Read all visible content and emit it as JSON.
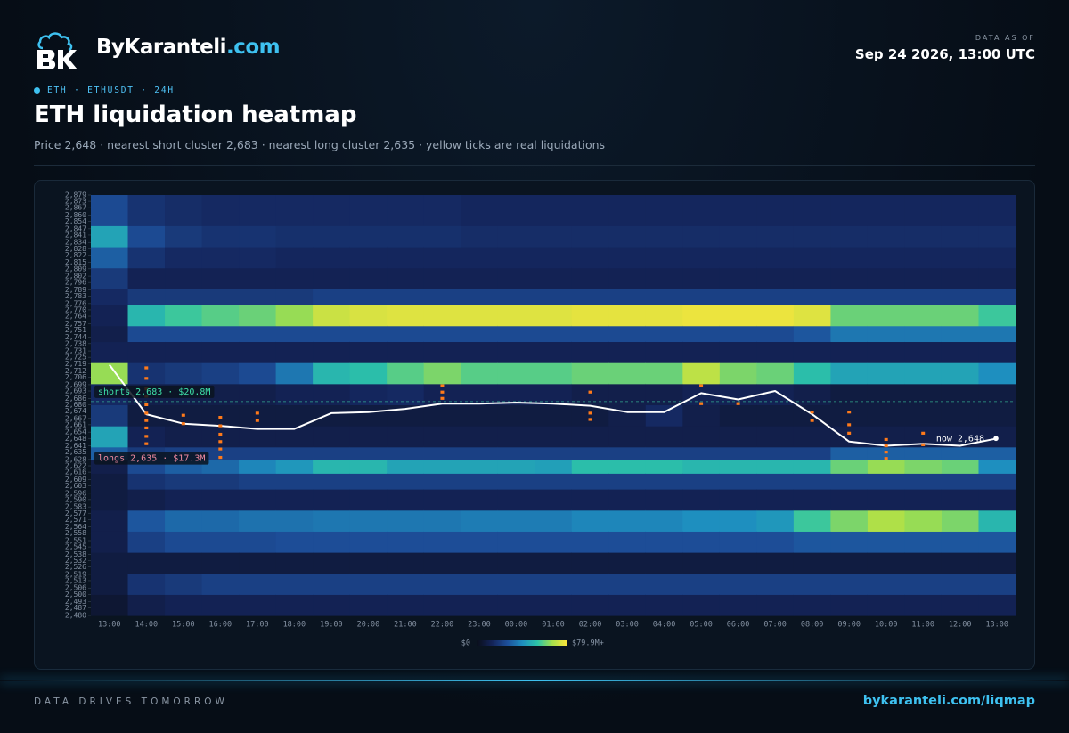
{
  "header": {
    "brand_name": "ByKaranteli",
    "brand_domain": ".com",
    "data_as_of_label": "DATA AS OF",
    "data_as_of": "Sep 24 2026, 13:00 UTC"
  },
  "tag": "ETH · ETHUSDT · 24H",
  "footer": {
    "tagline": "DATA DRIVES TOMORROW",
    "url": "bykaranteli.com/liqmap"
  },
  "chart_data": {
    "type": "heatmap",
    "title": "ETH liquidation heatmap",
    "subtitle": "Price 2,648 · nearest short cluster 2,683 · nearest long cluster 2,635 · yellow ticks are real liquidations",
    "categories": [
      "13:00",
      "14:00",
      "15:00",
      "16:00",
      "17:00",
      "18:00",
      "19:00",
      "20:00",
      "21:00",
      "22:00",
      "23:00",
      "00:00",
      "01:00",
      "02:00",
      "03:00",
      "04:00",
      "05:00",
      "06:00",
      "07:00",
      "08:00",
      "09:00",
      "10:00",
      "11:00",
      "12:00",
      "13:00"
    ],
    "ylim": [
      2480,
      2879
    ],
    "yticks": [
      {
        "value": 2879,
        "label": "2,879"
      },
      {
        "value": 2873,
        "label": "2,873"
      },
      {
        "value": 2867,
        "label": "2,867"
      },
      {
        "value": 2860,
        "label": "2,860"
      },
      {
        "value": 2854,
        "label": "2,854"
      },
      {
        "value": 2847,
        "label": "2,847"
      },
      {
        "value": 2841,
        "label": "2,841"
      },
      {
        "value": 2834,
        "label": "2,834"
      },
      {
        "value": 2828,
        "label": "2,828"
      },
      {
        "value": 2822,
        "label": "2,822"
      },
      {
        "value": 2815,
        "label": "2,815"
      },
      {
        "value": 2809,
        "label": "2,809"
      },
      {
        "value": 2802,
        "label": "2,802"
      },
      {
        "value": 2796,
        "label": "2,796"
      },
      {
        "value": 2789,
        "label": "2,789"
      },
      {
        "value": 2783,
        "label": "2,783"
      },
      {
        "value": 2776,
        "label": "2,776"
      },
      {
        "value": 2770,
        "label": "2,770"
      },
      {
        "value": 2764,
        "label": "2,764"
      },
      {
        "value": 2757,
        "label": "2,757"
      },
      {
        "value": 2751,
        "label": "2,751"
      },
      {
        "value": 2744,
        "label": "2,744"
      },
      {
        "value": 2738,
        "label": "2,738"
      },
      {
        "value": 2731,
        "label": "2,731"
      },
      {
        "value": 2725,
        "label": "2,725"
      },
      {
        "value": 2719,
        "label": "2,719"
      },
      {
        "value": 2712,
        "label": "2,712"
      },
      {
        "value": 2706,
        "label": "2,706"
      },
      {
        "value": 2699,
        "label": "2,699"
      },
      {
        "value": 2693,
        "label": "2,693"
      },
      {
        "value": 2686,
        "label": "2,686"
      },
      {
        "value": 2680,
        "label": "2,680"
      },
      {
        "value": 2674,
        "label": "2,674"
      },
      {
        "value": 2667,
        "label": "2,667"
      },
      {
        "value": 2661,
        "label": "2,661"
      },
      {
        "value": 2654,
        "label": "2,654"
      },
      {
        "value": 2648,
        "label": "2,648"
      },
      {
        "value": 2641,
        "label": "2,641"
      },
      {
        "value": 2635,
        "label": "2,635"
      },
      {
        "value": 2628,
        "label": "2,628"
      },
      {
        "value": 2622,
        "label": "2,622"
      },
      {
        "value": 2616,
        "label": "2,616"
      },
      {
        "value": 2609,
        "label": "2,609"
      },
      {
        "value": 2603,
        "label": "2,603"
      },
      {
        "value": 2596,
        "label": "2,596"
      },
      {
        "value": 2590,
        "label": "2,590"
      },
      {
        "value": 2583,
        "label": "2,583"
      },
      {
        "value": 2577,
        "label": "2,577"
      },
      {
        "value": 2571,
        "label": "2,571"
      },
      {
        "value": 2564,
        "label": "2,564"
      },
      {
        "value": 2558,
        "label": "2,558"
      },
      {
        "value": 2551,
        "label": "2,551"
      },
      {
        "value": 2545,
        "label": "2,545"
      },
      {
        "value": 2538,
        "label": "2,538"
      },
      {
        "value": 2532,
        "label": "2,532"
      },
      {
        "value": 2526,
        "label": "2,526"
      },
      {
        "value": 2519,
        "label": "2,519"
      },
      {
        "value": 2513,
        "label": "2,513"
      },
      {
        "value": 2506,
        "label": "2,506"
      },
      {
        "value": 2500,
        "label": "2,500"
      },
      {
        "value": 2493,
        "label": "2,493"
      },
      {
        "value": 2487,
        "label": "2,487"
      },
      {
        "value": 2480,
        "label": "2,480"
      }
    ],
    "y_bins": [
      2480,
      2500,
      2520,
      2540,
      2560,
      2580,
      2600,
      2615,
      2628,
      2640,
      2660,
      2680,
      2700,
      2720,
      2740,
      2755,
      2775,
      2790,
      2810,
      2830,
      2850,
      2879
    ],
    "z": [
      [
        5,
        8,
        8,
        10,
        10,
        8,
        8,
        10,
        30,
        45,
        20,
        15,
        65,
        12,
        10,
        12,
        15,
        20,
        30,
        45,
        25
      ],
      [
        10,
        18,
        8,
        22,
        28,
        10,
        18,
        25,
        20,
        12,
        8,
        10,
        18,
        12,
        25,
        50,
        20,
        12,
        18,
        25,
        18
      ],
      [
        12,
        20,
        8,
        25,
        32,
        12,
        20,
        30,
        22,
        10,
        8,
        10,
        20,
        12,
        25,
        55,
        20,
        12,
        15,
        20,
        16
      ],
      [
        12,
        22,
        8,
        25,
        32,
        12,
        20,
        32,
        22,
        10,
        8,
        10,
        22,
        12,
        25,
        58,
        20,
        12,
        15,
        18,
        15
      ],
      [
        12,
        22,
        8,
        25,
        34,
        12,
        22,
        38,
        22,
        10,
        8,
        10,
        25,
        12,
        25,
        60,
        20,
        12,
        15,
        18,
        15
      ],
      [
        12,
        22,
        8,
        26,
        34,
        12,
        22,
        42,
        22,
        10,
        8,
        12,
        35,
        12,
        25,
        65,
        20,
        12,
        14,
        17,
        15
      ],
      [
        12,
        22,
        8,
        26,
        35,
        12,
        22,
        50,
        22,
        10,
        8,
        12,
        50,
        12,
        25,
        72,
        22,
        12,
        14,
        17,
        15
      ],
      [
        12,
        22,
        8,
        26,
        35,
        12,
        22,
        50,
        22,
        10,
        8,
        14,
        52,
        12,
        25,
        74,
        22,
        12,
        14,
        17,
        15
      ],
      [
        12,
        22,
        8,
        26,
        35,
        12,
        22,
        45,
        22,
        10,
        8,
        15,
        58,
        12,
        25,
        75,
        22,
        12,
        14,
        17,
        15
      ],
      [
        12,
        22,
        8,
        26,
        35,
        12,
        22,
        45,
        22,
        10,
        8,
        12,
        62,
        12,
        25,
        75,
        22,
        12,
        14,
        17,
        15
      ],
      [
        12,
        22,
        8,
        26,
        36,
        12,
        22,
        45,
        22,
        10,
        8,
        12,
        58,
        12,
        25,
        75,
        22,
        12,
        14,
        16,
        14
      ],
      [
        12,
        22,
        8,
        26,
        36,
        12,
        22,
        45,
        22,
        10,
        8,
        12,
        58,
        12,
        25,
        75,
        22,
        12,
        14,
        16,
        14
      ],
      [
        12,
        22,
        8,
        26,
        36,
        12,
        22,
        44,
        22,
        10,
        8,
        12,
        58,
        12,
        25,
        75,
        22,
        12,
        14,
        16,
        14
      ],
      [
        12,
        22,
        8,
        26,
        38,
        12,
        22,
        52,
        22,
        10,
        8,
        10,
        60,
        12,
        25,
        76,
        22,
        12,
        14,
        16,
        14
      ],
      [
        12,
        22,
        8,
        26,
        38,
        12,
        22,
        52,
        22,
        10,
        10,
        10,
        60,
        12,
        25,
        76,
        22,
        12,
        14,
        16,
        14
      ],
      [
        12,
        22,
        8,
        26,
        38,
        12,
        22,
        52,
        22,
        10,
        15,
        10,
        60,
        12,
        25,
        76,
        22,
        12,
        14,
        16,
        14
      ],
      [
        12,
        22,
        8,
        26,
        40,
        12,
        22,
        50,
        22,
        10,
        10,
        12,
        70,
        12,
        25,
        77,
        22,
        12,
        14,
        16,
        14
      ],
      [
        12,
        22,
        8,
        26,
        40,
        12,
        22,
        50,
        22,
        10,
        8,
        12,
        62,
        12,
        25,
        77,
        22,
        12,
        14,
        16,
        14
      ],
      [
        12,
        22,
        8,
        26,
        42,
        12,
        22,
        50,
        22,
        10,
        8,
        12,
        60,
        12,
        25,
        77,
        22,
        12,
        14,
        16,
        14
      ],
      [
        12,
        22,
        8,
        28,
        55,
        12,
        22,
        50,
        22,
        10,
        8,
        10,
        52,
        12,
        28,
        75,
        22,
        12,
        14,
        16,
        14
      ],
      [
        12,
        22,
        8,
        28,
        62,
        12,
        22,
        60,
        30,
        10,
        8,
        8,
        45,
        12,
        35,
        60,
        22,
        12,
        14,
        16,
        14
      ],
      [
        12,
        22,
        8,
        28,
        68,
        12,
        22,
        65,
        30,
        10,
        8,
        8,
        45,
        12,
        35,
        60,
        22,
        12,
        14,
        16,
        14
      ],
      [
        12,
        22,
        8,
        28,
        65,
        12,
        22,
        62,
        30,
        10,
        8,
        8,
        45,
        12,
        35,
        60,
        22,
        12,
        14,
        16,
        14
      ],
      [
        12,
        22,
        8,
        28,
        62,
        12,
        22,
        60,
        30,
        10,
        8,
        8,
        45,
        12,
        35,
        60,
        22,
        12,
        14,
        16,
        14
      ],
      [
        12,
        22,
        8,
        28,
        50,
        12,
        22,
        40,
        30,
        10,
        8,
        8,
        40,
        12,
        35,
        55,
        22,
        12,
        14,
        16,
        14
      ]
    ],
    "zlim": [
      0,
      79.9
    ],
    "zticks": [
      {
        "value": 0,
        "label": "$0"
      },
      {
        "value": 79.9,
        "label": "$79.9M+"
      }
    ],
    "colorscale": [
      "#0a0f1c",
      "#14245a",
      "#1d4f9a",
      "#1e8fbf",
      "#2cc3a8",
      "#a6df4a",
      "#ffe53b"
    ],
    "price": {
      "color": "#ffffff",
      "values": [
        2718,
        2671,
        2662,
        2660,
        2657,
        2657,
        2672,
        2673,
        2676,
        2681,
        2681,
        2682,
        2681,
        2679,
        2673,
        2673,
        2691,
        2685,
        2693,
        2671,
        2645,
        2641,
        2643,
        2641,
        2648
      ]
    },
    "liquidations": {
      "color": "#ff7a1a",
      "x": [
        "14:00",
        "14:00",
        "14:00",
        "14:00",
        "14:00",
        "14:00",
        "14:00",
        "14:00",
        "14:00",
        "14:00",
        "15:00",
        "15:00",
        "16:00",
        "16:00",
        "16:00",
        "16:00",
        "16:00",
        "16:00",
        "17:00",
        "17:00",
        "22:00",
        "22:00",
        "22:00",
        "02:00",
        "02:00",
        "02:00",
        "05:00",
        "05:00",
        "06:00",
        "08:00",
        "08:00",
        "09:00",
        "09:00",
        "09:00",
        "10:00",
        "10:00",
        "10:00",
        "10:00",
        "11:00",
        "11:00"
      ],
      "prices": [
        2715,
        2705,
        2695,
        2688,
        2680,
        2672,
        2665,
        2658,
        2650,
        2643,
        2670,
        2662,
        2668,
        2660,
        2652,
        2645,
        2638,
        2630,
        2672,
        2665,
        2698,
        2692,
        2686,
        2692,
        2672,
        2666,
        2698,
        2681,
        2681,
        2673,
        2665,
        2673,
        2661,
        2653,
        2647,
        2641,
        2635,
        2629,
        2653,
        2642
      ]
    },
    "annotations": [
      {
        "text": "shorts 2,683 · $20.8M",
        "value": 2683,
        "color": "#3ee0a8"
      },
      {
        "text": "longs 2,635 · $17.3M",
        "value": 2635,
        "color": "#f08aa0"
      },
      {
        "text": "now 2,648",
        "value": 2648,
        "color": "#ffffff"
      }
    ]
  }
}
